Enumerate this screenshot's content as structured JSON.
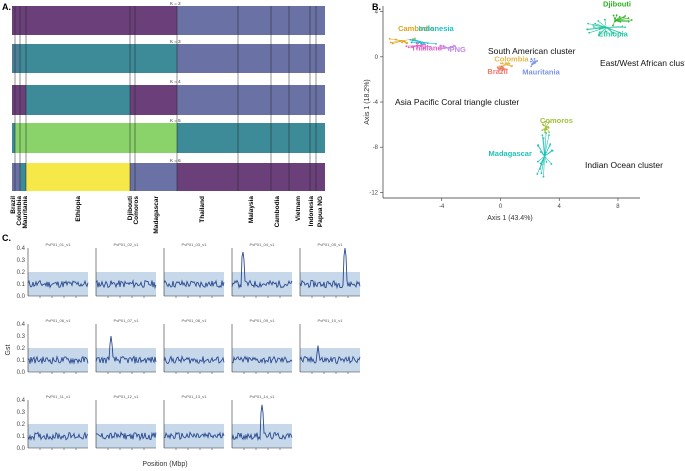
{
  "panel_labels": {
    "a": "A.",
    "b": "B.",
    "c": "C."
  },
  "panel_a": {
    "k_labels": [
      "K = 2",
      "K = 3",
      "K = 4",
      "K = 5",
      "K = 6"
    ],
    "populations": [
      "Brazil",
      "Colombia",
      "Mauritania",
      "Ethiopia",
      "Djibouti",
      "Comoros",
      "Madagascar",
      "Thailand",
      "Malaysia",
      "Cambodia",
      "Vietnam",
      "Indonesia",
      "Papua NG"
    ]
  },
  "panel_c": {
    "ylabel": "Gst",
    "xlabel": "Position (Mbp)",
    "chromosomes": [
      "PvP01_01_v1",
      "PvP01_02_v1",
      "PvP01_03_v1",
      "PvP01_04_v1",
      "PvP01_05_v1",
      "PvP01_06_v1",
      "PvP01_07_v1",
      "PvP01_08_v1",
      "PvP01_09_v1",
      "PvP01_10_v1",
      "PvP01_11_v1",
      "PvP01_12_v1",
      "PvP01_13_v1",
      "PvP01_14_v1"
    ],
    "yticks": [
      "0.4",
      "0.3",
      "0.2",
      "0.1",
      "0.0"
    ]
  },
  "chart_data": {
    "type": "scatter",
    "title": "",
    "xlabel": "Axis 1 (43.4%)",
    "ylabel": "Axis 1 (18.2%)",
    "xlim": [
      -8,
      9.5
    ],
    "ylim": [
      -12.5,
      4.5
    ],
    "xticks": [
      -4,
      0,
      4,
      8
    ],
    "yticks": [
      4,
      0,
      -4,
      -8,
      -12
    ],
    "series": [
      {
        "name": "Cambodia",
        "color": "#e3a21a",
        "center": [
          -6.7,
          1.4
        ]
      },
      {
        "name": "Indonesia",
        "color": "#19c0c9",
        "center": [
          -5.3,
          1.3
        ]
      },
      {
        "name": "Thailand",
        "color": "#e35fc7",
        "center": [
          -5.6,
          1.0
        ]
      },
      {
        "name": "PNG",
        "color": "#c486e8",
        "center": [
          -3.6,
          0.8
        ]
      },
      {
        "name": "Colombia",
        "color": "#e8b74a",
        "center": [
          0.4,
          -0.7
        ]
      },
      {
        "name": "Brazil",
        "color": "#f07a6a",
        "center": [
          0.2,
          -1.0
        ]
      },
      {
        "name": "Mauritania",
        "color": "#7d95e8",
        "center": [
          2.3,
          -0.5
        ]
      },
      {
        "name": "Djibouti",
        "color": "#2ab320",
        "center": [
          7.8,
          3.2
        ]
      },
      {
        "name": "Ethiopia",
        "color": "#26c6a2",
        "center": [
          7.2,
          2.6
        ]
      },
      {
        "name": "Comoros",
        "color": "#9ec238",
        "center": [
          3.1,
          -6.2
        ]
      },
      {
        "name": "Madagascar",
        "color": "#22c2b5",
        "center": [
          3.0,
          -8.8
        ]
      }
    ],
    "cluster_labels": [
      {
        "text": "South American cluster"
      },
      {
        "text": "Asia Pacific Coral triangle cluster"
      },
      {
        "text": "East/West African cluster"
      },
      {
        "text": "Indian Ocean cluster"
      }
    ]
  }
}
